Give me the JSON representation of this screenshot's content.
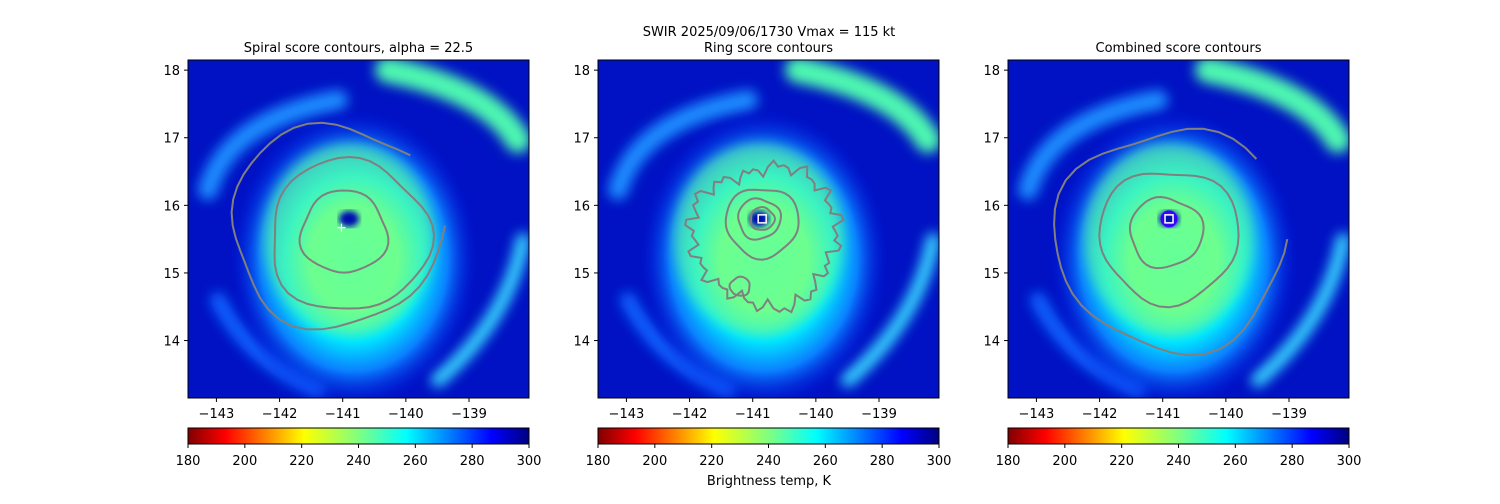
{
  "figure": {
    "suptitle_line1": "SWIR  2025/09/06/1730    Vmax = 115 kt",
    "colorbar_label": "Brightness temp, K",
    "colormap": "jet_r",
    "colors": {
      "contour": "#808080",
      "center_marker": "#ffffff",
      "combined_circle": "#3b00ff"
    }
  },
  "chart_data": [
    {
      "type": "heatmap",
      "title": "Spiral score contours, alpha = 22.5",
      "xlabel": "",
      "ylabel": "",
      "xlim": [
        -143.45,
        -138.05
      ],
      "ylim": [
        13.15,
        18.15
      ],
      "xticks": [
        -143,
        -142,
        -141,
        -140,
        -139
      ],
      "yticks": [
        14,
        15,
        16,
        17,
        18
      ],
      "colorbar": {
        "range": [
          180,
          300
        ],
        "ticks": [
          180,
          200,
          220,
          240,
          260,
          280,
          300
        ]
      },
      "eye": {
        "lon": -140.9,
        "lat": 15.8
      },
      "center_marker": {
        "lon": -141.02,
        "lat": 15.67,
        "symbol": "+"
      },
      "contours": [
        {
          "lon": -140.98,
          "lat": 15.6,
          "r": 0.65
        },
        {
          "lon": -140.9,
          "lat": 15.55,
          "r": 1.2
        },
        {
          "lon": -141.1,
          "lat": 15.7,
          "r": 1.6,
          "open": true
        }
      ]
    },
    {
      "type": "heatmap",
      "title": "Ring score contours",
      "xlabel": "",
      "ylabel": "",
      "xlim": [
        -143.45,
        -138.05
      ],
      "ylim": [
        13.15,
        18.15
      ],
      "xticks": [
        -143,
        -142,
        -141,
        -140,
        -139
      ],
      "yticks": [
        14,
        15,
        16,
        17,
        18
      ],
      "colorbar": {
        "range": [
          180,
          300
        ],
        "ticks": [
          180,
          200,
          220,
          240,
          260,
          280,
          300
        ]
      },
      "eye": {
        "lon": -140.9,
        "lat": 15.8
      },
      "center_marker": {
        "lon": -140.85,
        "lat": 15.8,
        "symbol": "square"
      },
      "contours": [
        {
          "lon": -140.85,
          "lat": 15.8,
          "r": 0.18
        },
        {
          "lon": -140.9,
          "lat": 15.8,
          "r": 0.32
        },
        {
          "lon": -140.85,
          "lat": 15.75,
          "r": 0.55
        },
        {
          "lon": -140.8,
          "lat": 15.55,
          "r": 1.1,
          "noisy": true
        },
        {
          "lon": -141.2,
          "lat": 14.8,
          "r": 0.15
        }
      ]
    },
    {
      "type": "heatmap",
      "title": "Combined score contours",
      "xlabel": "",
      "ylabel": "",
      "xlim": [
        -143.45,
        -138.05
      ],
      "ylim": [
        13.15,
        18.15
      ],
      "xticks": [
        -143,
        -142,
        -141,
        -140,
        -139
      ],
      "yticks": [
        14,
        15,
        16,
        17,
        18
      ],
      "colorbar": {
        "range": [
          180,
          300
        ],
        "ticks": [
          180,
          200,
          220,
          240,
          260,
          280,
          300
        ]
      },
      "eye": {
        "lon": -140.9,
        "lat": 15.8
      },
      "center_marker": {
        "lon": -140.9,
        "lat": 15.8,
        "symbol": "square"
      },
      "contours": [
        {
          "lon": -140.95,
          "lat": 15.6,
          "r": 0.55
        },
        {
          "lon": -140.9,
          "lat": 15.55,
          "r": 1.05
        },
        {
          "lon": -140.85,
          "lat": 15.5,
          "r": 1.75,
          "open": true
        }
      ]
    }
  ]
}
